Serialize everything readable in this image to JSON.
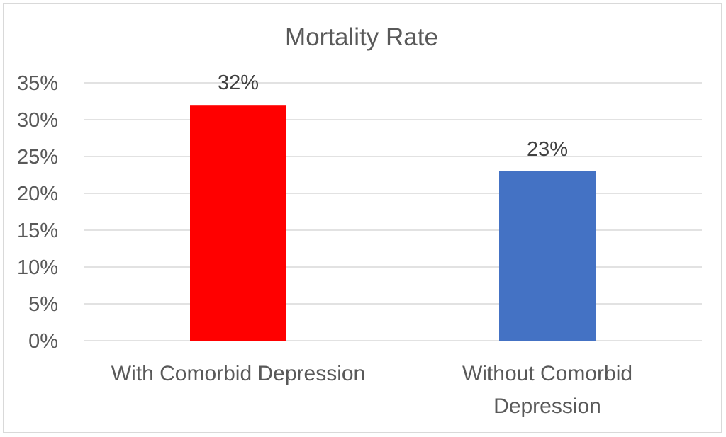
{
  "chart_data": {
    "type": "bar",
    "title": "Mortality Rate",
    "xlabel": "",
    "ylabel": "",
    "categories": [
      [
        "With Comorbid Depression"
      ],
      [
        "Without Comorbid",
        "Depression"
      ]
    ],
    "values": [
      0.32,
      0.23
    ],
    "data_labels": [
      "32%",
      "23%"
    ],
    "bar_colors": [
      "#ff0000",
      "#4472c4"
    ],
    "ylim": [
      0,
      0.35
    ],
    "yticks": [
      0,
      0.05,
      0.1,
      0.15,
      0.2,
      0.25,
      0.3,
      0.35
    ],
    "ytick_labels": [
      "0%",
      "5%",
      "10%",
      "15%",
      "20%",
      "25%",
      "30%",
      "35%"
    ],
    "grid": true,
    "legend": "none"
  }
}
